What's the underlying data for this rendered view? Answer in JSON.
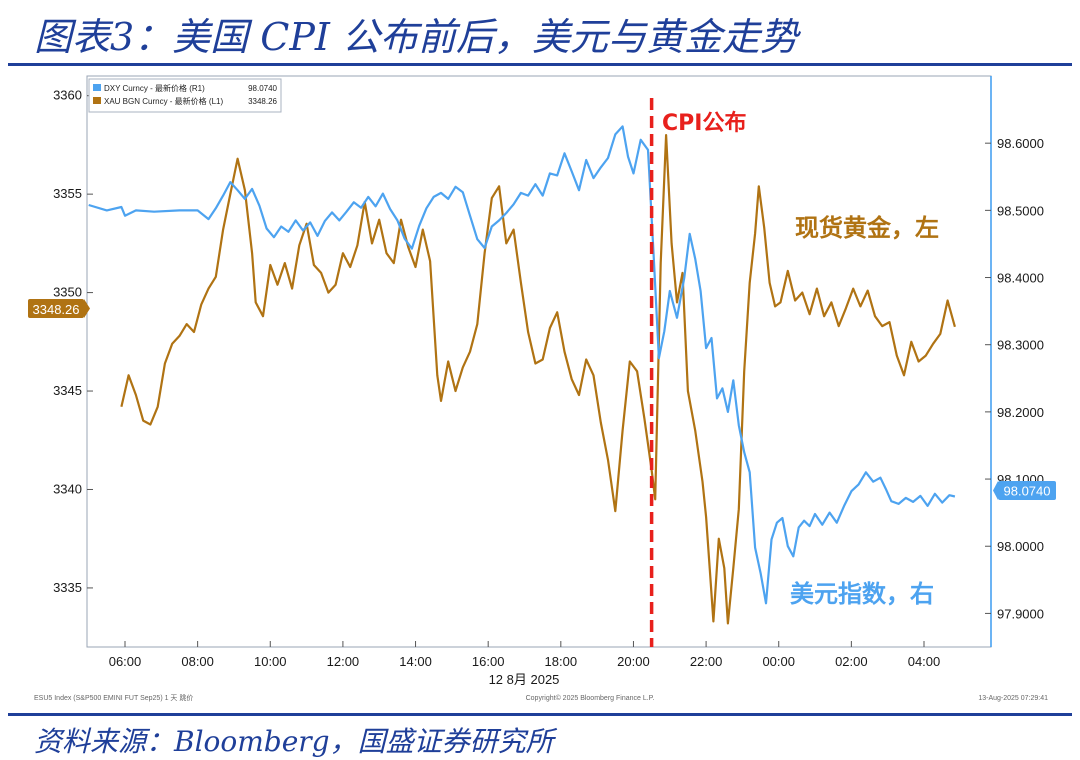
{
  "header": {
    "title": "图表3：美国 CPI 公布前后，美元与黄金走势"
  },
  "footer": {
    "source": "资料来源：Bloomberg，国盛证券研究所"
  },
  "chart_data": {
    "type": "line",
    "x_ticks": [
      "06:00",
      "08:00",
      "10:00",
      "12:00",
      "14:00",
      "16:00",
      "18:00",
      "20:00",
      "22:00",
      "00:00",
      "02:00",
      "04:00"
    ],
    "x_date_label": "12 8月 2025",
    "left_axis": {
      "ylim": [
        3332,
        3361
      ],
      "ticks": [
        "3335",
        "3340",
        "3345",
        "3350",
        "3355",
        "3360"
      ]
    },
    "right_axis": {
      "ylim": [
        97.85,
        98.7
      ],
      "ticks": [
        "97.9000",
        "98.0000",
        "98.1000",
        "98.2000",
        "98.3000",
        "98.4000",
        "98.5000",
        "98.6000"
      ]
    },
    "legend": [
      {
        "name": "DXY Curncy - 最新价格 (R1)",
        "value": "98.0740",
        "color": "#4da3f0"
      },
      {
        "name": "XAU BGN Curncy - 最新价格 (L1)",
        "value": "3348.26",
        "color": "#b07313"
      }
    ],
    "last_value_labels": {
      "gold": "3348.26",
      "dxy": "98.0740"
    },
    "event": {
      "label": "CPI公布",
      "x": 20.5,
      "color": "#e8201c"
    },
    "annotations": [
      {
        "text": "现货黄金，左",
        "color": "#b07313"
      },
      {
        "text": "美元指数，右",
        "color": "#4da3f0"
      }
    ],
    "footnote_left": "ESU5 Index (S&P500 EMINI FUT Sep25) 1 天 跳价",
    "footnote_center": "Copyright© 2025 Bloomberg Finance L.P.",
    "footnote_right": "13-Aug-2025 07:29:41",
    "series": [
      {
        "name": "XAU BGN Curncy",
        "axis": "left",
        "color": "#b07313",
        "points": [
          [
            5.9,
            3344.2
          ],
          [
            6.1,
            3345.8
          ],
          [
            6.3,
            3344.8
          ],
          [
            6.5,
            3343.5
          ],
          [
            6.7,
            3343.3
          ],
          [
            6.9,
            3344.2
          ],
          [
            7.1,
            3346.4
          ],
          [
            7.3,
            3347.4
          ],
          [
            7.5,
            3347.8
          ],
          [
            7.7,
            3348.4
          ],
          [
            7.9,
            3348.0
          ],
          [
            8.1,
            3349.4
          ],
          [
            8.3,
            3350.2
          ],
          [
            8.5,
            3350.8
          ],
          [
            8.7,
            3353.2
          ],
          [
            8.9,
            3355.0
          ],
          [
            9.1,
            3356.8
          ],
          [
            9.3,
            3355.2
          ],
          [
            9.5,
            3352.0
          ],
          [
            9.6,
            3349.5
          ],
          [
            9.8,
            3348.8
          ],
          [
            10.0,
            3351.4
          ],
          [
            10.2,
            3350.4
          ],
          [
            10.4,
            3351.5
          ],
          [
            10.6,
            3350.2
          ],
          [
            10.8,
            3352.4
          ],
          [
            11.0,
            3353.5
          ],
          [
            11.2,
            3351.4
          ],
          [
            11.4,
            3351.0
          ],
          [
            11.6,
            3350.0
          ],
          [
            11.8,
            3350.4
          ],
          [
            12.0,
            3352.0
          ],
          [
            12.2,
            3351.3
          ],
          [
            12.4,
            3352.4
          ],
          [
            12.6,
            3354.6
          ],
          [
            12.8,
            3352.5
          ],
          [
            13.0,
            3353.7
          ],
          [
            13.2,
            3352.0
          ],
          [
            13.4,
            3351.5
          ],
          [
            13.6,
            3353.7
          ],
          [
            13.8,
            3352.3
          ],
          [
            14.0,
            3351.3
          ],
          [
            14.2,
            3353.2
          ],
          [
            14.4,
            3351.6
          ],
          [
            14.6,
            3345.8
          ],
          [
            14.7,
            3344.5
          ],
          [
            14.9,
            3346.5
          ],
          [
            15.1,
            3345.0
          ],
          [
            15.3,
            3346.2
          ],
          [
            15.5,
            3347.0
          ],
          [
            15.7,
            3348.4
          ],
          [
            15.9,
            3352.0
          ],
          [
            16.1,
            3354.8
          ],
          [
            16.3,
            3355.4
          ],
          [
            16.5,
            3352.5
          ],
          [
            16.7,
            3353.2
          ],
          [
            16.9,
            3350.5
          ],
          [
            17.1,
            3348.0
          ],
          [
            17.3,
            3346.4
          ],
          [
            17.5,
            3346.6
          ],
          [
            17.7,
            3348.2
          ],
          [
            17.9,
            3349.0
          ],
          [
            18.1,
            3347.0
          ],
          [
            18.3,
            3345.6
          ],
          [
            18.5,
            3344.8
          ],
          [
            18.7,
            3346.6
          ],
          [
            18.9,
            3345.8
          ],
          [
            19.1,
            3343.4
          ],
          [
            19.3,
            3341.5
          ],
          [
            19.5,
            3338.9
          ],
          [
            19.7,
            3343.0
          ],
          [
            19.9,
            3346.5
          ],
          [
            20.1,
            3346.0
          ],
          [
            20.3,
            3343.6
          ],
          [
            20.5,
            3341.0
          ],
          [
            20.6,
            3339.5
          ],
          [
            20.75,
            3351.5
          ],
          [
            20.9,
            3358.0
          ],
          [
            21.05,
            3352.5
          ],
          [
            21.2,
            3349.5
          ],
          [
            21.35,
            3351.0
          ],
          [
            21.5,
            3345.0
          ],
          [
            21.7,
            3343.0
          ],
          [
            21.9,
            3340.4
          ],
          [
            22.0,
            3338.6
          ],
          [
            22.1,
            3336.0
          ],
          [
            22.2,
            3333.3
          ],
          [
            22.35,
            3337.5
          ],
          [
            22.5,
            3336.0
          ],
          [
            22.6,
            3333.2
          ],
          [
            22.75,
            3336.0
          ],
          [
            22.9,
            3339.0
          ],
          [
            23.05,
            3346.0
          ],
          [
            23.2,
            3350.5
          ],
          [
            23.35,
            3353.0
          ],
          [
            23.45,
            3355.4
          ],
          [
            23.6,
            3353.3
          ],
          [
            23.75,
            3350.5
          ],
          [
            23.9,
            3349.3
          ],
          [
            24.05,
            3349.5
          ],
          [
            24.25,
            3351.1
          ],
          [
            24.45,
            3349.6
          ],
          [
            24.65,
            3350.0
          ],
          [
            24.85,
            3348.9
          ],
          [
            25.05,
            3350.2
          ],
          [
            25.25,
            3348.8
          ],
          [
            25.45,
            3349.5
          ],
          [
            25.65,
            3348.3
          ],
          [
            25.85,
            3349.2
          ],
          [
            26.05,
            3350.2
          ],
          [
            26.25,
            3349.3
          ],
          [
            26.45,
            3350.1
          ],
          [
            26.65,
            3348.8
          ],
          [
            26.85,
            3348.3
          ],
          [
            27.05,
            3348.5
          ],
          [
            27.25,
            3346.8
          ],
          [
            27.45,
            3345.8
          ],
          [
            27.65,
            3347.5
          ],
          [
            27.85,
            3346.5
          ],
          [
            28.05,
            3346.8
          ],
          [
            28.25,
            3347.4
          ],
          [
            28.45,
            3347.9
          ],
          [
            28.65,
            3349.6
          ],
          [
            28.85,
            3348.26
          ]
        ]
      },
      {
        "name": "DXY Curncy",
        "axis": "right",
        "color": "#4da3f0",
        "points": [
          [
            5.0,
            98.508
          ],
          [
            5.5,
            98.5
          ],
          [
            5.9,
            98.505
          ],
          [
            6.0,
            98.492
          ],
          [
            6.3,
            98.5
          ],
          [
            6.8,
            98.498
          ],
          [
            7.5,
            98.5
          ],
          [
            8.0,
            98.5
          ],
          [
            8.3,
            98.487
          ],
          [
            8.5,
            98.503
          ],
          [
            8.7,
            98.522
          ],
          [
            8.9,
            98.542
          ],
          [
            9.1,
            98.53
          ],
          [
            9.3,
            98.517
          ],
          [
            9.5,
            98.532
          ],
          [
            9.7,
            98.507
          ],
          [
            9.9,
            98.473
          ],
          [
            10.1,
            98.46
          ],
          [
            10.3,
            98.476
          ],
          [
            10.5,
            98.468
          ],
          [
            10.7,
            98.485
          ],
          [
            10.9,
            98.47
          ],
          [
            11.1,
            98.482
          ],
          [
            11.3,
            98.462
          ],
          [
            11.5,
            98.484
          ],
          [
            11.7,
            98.497
          ],
          [
            11.9,
            98.485
          ],
          [
            12.1,
            98.498
          ],
          [
            12.3,
            98.512
          ],
          [
            12.5,
            98.504
          ],
          [
            12.7,
            98.52
          ],
          [
            12.9,
            98.506
          ],
          [
            13.1,
            98.525
          ],
          [
            13.3,
            98.502
          ],
          [
            13.5,
            98.485
          ],
          [
            13.7,
            98.458
          ],
          [
            13.9,
            98.443
          ],
          [
            14.1,
            98.477
          ],
          [
            14.3,
            98.503
          ],
          [
            14.5,
            98.52
          ],
          [
            14.7,
            98.526
          ],
          [
            14.9,
            98.517
          ],
          [
            15.1,
            98.535
          ],
          [
            15.3,
            98.527
          ],
          [
            15.5,
            98.492
          ],
          [
            15.7,
            98.457
          ],
          [
            15.9,
            98.444
          ],
          [
            16.1,
            98.476
          ],
          [
            16.3,
            98.485
          ],
          [
            16.5,
            98.496
          ],
          [
            16.7,
            98.509
          ],
          [
            16.9,
            98.526
          ],
          [
            17.1,
            98.522
          ],
          [
            17.3,
            98.539
          ],
          [
            17.5,
            98.522
          ],
          [
            17.7,
            98.555
          ],
          [
            17.9,
            98.552
          ],
          [
            18.1,
            98.585
          ],
          [
            18.3,
            98.558
          ],
          [
            18.5,
            98.53
          ],
          [
            18.7,
            98.575
          ],
          [
            18.9,
            98.548
          ],
          [
            19.1,
            98.564
          ],
          [
            19.3,
            98.578
          ],
          [
            19.5,
            98.613
          ],
          [
            19.7,
            98.625
          ],
          [
            19.85,
            98.58
          ],
          [
            20.0,
            98.555
          ],
          [
            20.2,
            98.605
          ],
          [
            20.4,
            98.59
          ],
          [
            20.55,
            98.44
          ],
          [
            20.7,
            98.28
          ],
          [
            20.85,
            98.32
          ],
          [
            21.0,
            98.38
          ],
          [
            21.2,
            98.34
          ],
          [
            21.4,
            98.4
          ],
          [
            21.55,
            98.465
          ],
          [
            21.7,
            98.428
          ],
          [
            21.85,
            98.38
          ],
          [
            22.0,
            98.295
          ],
          [
            22.15,
            98.31
          ],
          [
            22.3,
            98.22
          ],
          [
            22.45,
            98.235
          ],
          [
            22.6,
            98.2
          ],
          [
            22.75,
            98.247
          ],
          [
            22.9,
            98.18
          ],
          [
            23.05,
            98.14
          ],
          [
            23.2,
            98.11
          ],
          [
            23.35,
            97.998
          ],
          [
            23.5,
            97.96
          ],
          [
            23.65,
            97.915
          ],
          [
            23.8,
            98.01
          ],
          [
            23.95,
            98.035
          ],
          [
            24.1,
            98.042
          ],
          [
            24.25,
            98.0
          ],
          [
            24.4,
            97.985
          ],
          [
            24.55,
            98.028
          ],
          [
            24.7,
            98.038
          ],
          [
            24.85,
            98.03
          ],
          [
            25.0,
            98.048
          ],
          [
            25.2,
            98.032
          ],
          [
            25.4,
            98.05
          ],
          [
            25.6,
            98.035
          ],
          [
            25.8,
            98.06
          ],
          [
            26.0,
            98.082
          ],
          [
            26.2,
            98.092
          ],
          [
            26.4,
            98.11
          ],
          [
            26.6,
            98.096
          ],
          [
            26.8,
            98.102
          ],
          [
            26.95,
            98.085
          ],
          [
            27.1,
            98.067
          ],
          [
            27.3,
            98.063
          ],
          [
            27.5,
            98.072
          ],
          [
            27.7,
            98.066
          ],
          [
            27.9,
            98.075
          ],
          [
            28.1,
            98.06
          ],
          [
            28.3,
            98.078
          ],
          [
            28.5,
            98.065
          ],
          [
            28.7,
            98.076
          ],
          [
            28.85,
            98.074
          ]
        ]
      }
    ]
  }
}
